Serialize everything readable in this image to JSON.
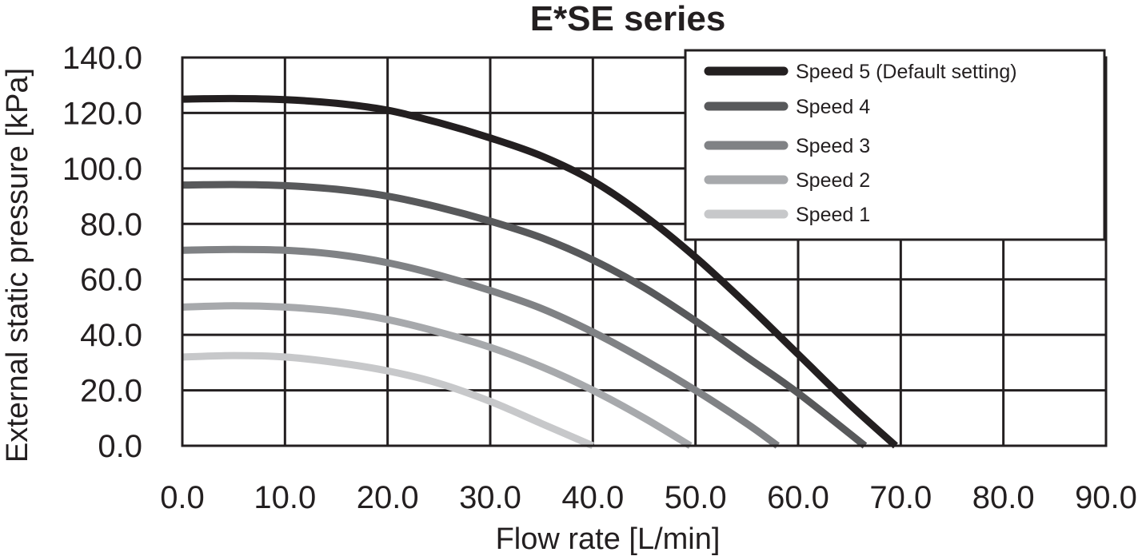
{
  "chart_data": {
    "type": "line",
    "title": "E*SE series",
    "xlabel": "Flow rate [L/min]",
    "ylabel": "External static pressure [kPa]",
    "xlim": [
      0,
      90
    ],
    "ylim": [
      0,
      140
    ],
    "x_ticks": [
      "0.0",
      "10.0",
      "20.0",
      "30.0",
      "40.0",
      "50.0",
      "60.0",
      "70.0",
      "80.0",
      "90.0"
    ],
    "y_ticks": [
      "0.0",
      "20.0",
      "40.0",
      "60.0",
      "80.0",
      "100.0",
      "120.0",
      "140.0"
    ],
    "grid": true,
    "legend_position": "top-right",
    "series": [
      {
        "name": "Speed 5 (Default setting)",
        "color": "#231f20",
        "x": [
          0,
          5,
          10,
          15,
          20,
          25,
          30,
          35,
          40,
          45,
          50,
          55,
          60,
          65,
          69.5
        ],
        "y": [
          125,
          125.2,
          124.8,
          123.5,
          121,
          116.5,
          111,
          104.5,
          95.5,
          83,
          68,
          51,
          33,
          15,
          0
        ]
      },
      {
        "name": "Speed 4",
        "color": "#58595b",
        "x": [
          0,
          5,
          10,
          15,
          20,
          25,
          30,
          35,
          40,
          45,
          50,
          55,
          60,
          66.5
        ],
        "y": [
          94,
          94.2,
          93.8,
          92.5,
          90,
          86,
          81,
          75,
          67,
          57,
          45,
          32,
          19,
          0
        ]
      },
      {
        "name": "Speed 3",
        "color": "#808285",
        "x": [
          0,
          5,
          10,
          15,
          20,
          25,
          30,
          35,
          40,
          45,
          50,
          55,
          58
        ],
        "y": [
          70.5,
          70.8,
          70.5,
          69,
          66,
          61.5,
          56,
          49.5,
          41,
          31,
          20,
          8,
          0
        ]
      },
      {
        "name": "Speed 2",
        "color": "#a7a9ac",
        "x": [
          0,
          5,
          10,
          15,
          20,
          25,
          30,
          35,
          40,
          45,
          49.5
        ],
        "y": [
          50,
          50.5,
          50,
          48.5,
          45.5,
          41,
          35.5,
          28.5,
          20,
          10,
          0
        ]
      },
      {
        "name": "Speed 1",
        "color": "#c7c8ca",
        "x": [
          0,
          5,
          10,
          15,
          20,
          25,
          30,
          35,
          40
        ],
        "y": [
          32,
          32.5,
          32,
          30,
          27,
          22.5,
          16,
          8,
          0
        ]
      }
    ]
  }
}
